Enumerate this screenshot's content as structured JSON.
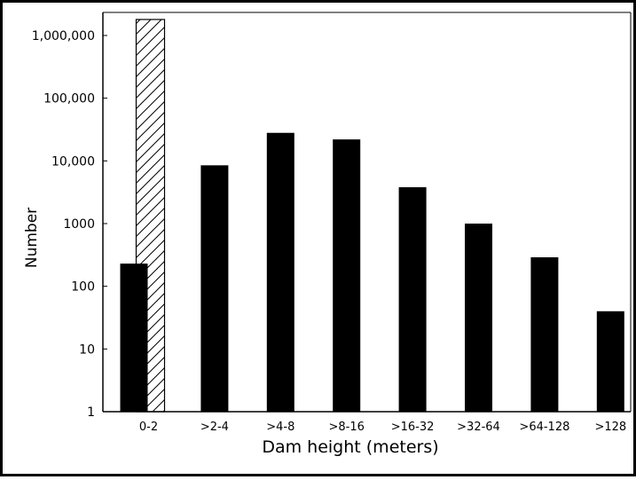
{
  "chart_data": {
    "type": "bar",
    "title": "",
    "xlabel": "Dam height (meters)",
    "ylabel": "Number",
    "yscale": "log",
    "ylim": [
      1,
      1000000
    ],
    "yticks": [
      {
        "value": 1000000,
        "label": "1,000,000"
      },
      {
        "value": 100000,
        "label": "100,000"
      },
      {
        "value": 10000,
        "label": "10,000"
      },
      {
        "value": 1000,
        "label": "1000"
      },
      {
        "value": 100,
        "label": "100"
      },
      {
        "value": 10,
        "label": "10"
      },
      {
        "value": 1,
        "label": "1"
      }
    ],
    "grid": false,
    "categories": [
      "0-2",
      ">2-4",
      ">4-8",
      ">8-16",
      ">16-32",
      ">32-64",
      ">64-128",
      ">128"
    ],
    "series": [
      {
        "style": "solid",
        "color": "#000000",
        "values": [
          230,
          8500,
          28000,
          22000,
          3800,
          1000,
          290,
          40
        ]
      },
      {
        "style": "hatched",
        "color": "#000000",
        "values": [
          1800000,
          null,
          null,
          null,
          null,
          null,
          null,
          null
        ]
      }
    ]
  }
}
